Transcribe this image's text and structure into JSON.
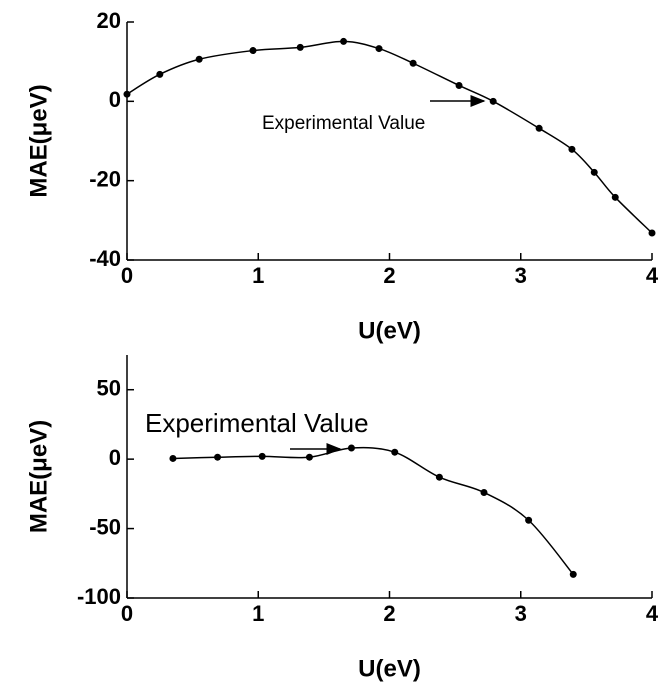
{
  "chart_data": [
    {
      "type": "line",
      "xlabel": "U(eV)",
      "ylabel": "MAE(μeV)",
      "annotation": "Experimental Value",
      "xlim": [
        0,
        4
      ],
      "xticks": [
        0,
        1,
        2,
        3,
        4
      ],
      "ylim": [
        -40,
        20
      ],
      "yticks": [
        20,
        0,
        -20,
        -40
      ],
      "series": [
        {
          "color": "#000000",
          "x": [
            0,
            0.25,
            0.55,
            0.96,
            1.32,
            1.65,
            1.92,
            2.18,
            2.53,
            2.79,
            3.14,
            3.39,
            3.56,
            3.72,
            4
          ],
          "values": [
            1.8,
            6.8,
            10.6,
            12.8,
            13.6,
            15.1,
            13.3,
            9.6,
            4.0,
            0,
            -6.8,
            -12.1,
            -17.9,
            -24.2,
            -33.2
          ]
        }
      ]
    },
    {
      "type": "line",
      "xlabel": "U(eV)",
      "ylabel": "MAE(μeV)",
      "annotation": "Experimental Value",
      "xlim": [
        0,
        4
      ],
      "xticks": [
        0,
        1,
        2,
        3,
        4
      ],
      "ylim": [
        -100,
        75
      ],
      "yticks": [
        50,
        0,
        -50,
        -100
      ],
      "series": [
        {
          "color": "#000000",
          "x": [
            0.35,
            0.69,
            1.03,
            1.39,
            1.71,
            2.04,
            2.38,
            2.72,
            3.06,
            3.4
          ],
          "values": [
            0.5,
            1.4,
            2,
            1.4,
            8,
            5,
            -13,
            -24,
            -44,
            -83
          ]
        }
      ]
    }
  ]
}
